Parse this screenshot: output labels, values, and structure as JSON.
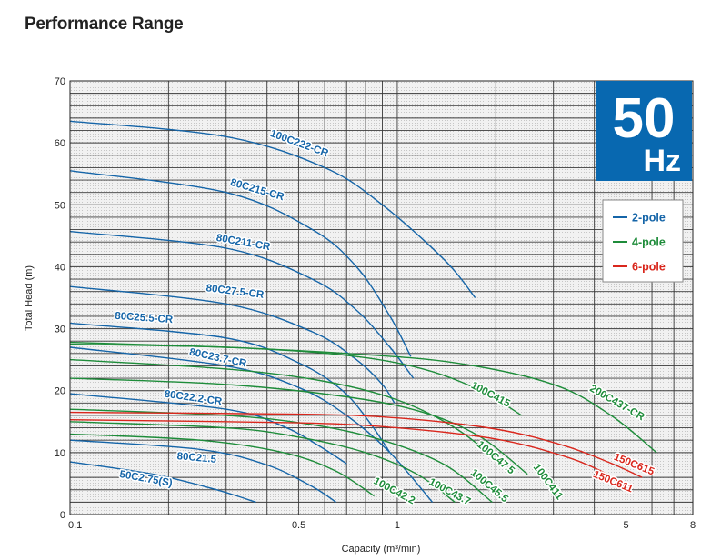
{
  "page_title": "Performance Range",
  "badge": {
    "value": "50",
    "unit": "Hz",
    "color": "#0868b0"
  },
  "legend": [
    {
      "label": "2-pole",
      "color": "#1565a8"
    },
    {
      "label": "4-pole",
      "color": "#1e8c3a"
    },
    {
      "label": "6-pole",
      "color": "#d9271d"
    }
  ],
  "chart_data": {
    "type": "line",
    "title": "Performance Range",
    "xlabel": "Capacity (m³/min)",
    "ylabel": "Total Head (m)",
    "xscale": "log",
    "xlim": [
      0.1,
      8
    ],
    "ylim": [
      0,
      70
    ],
    "x_ticks": [
      "0.1",
      "0.5",
      "1",
      "5",
      "8"
    ],
    "y_ticks": [
      "0",
      "10",
      "20",
      "30",
      "40",
      "50",
      "60",
      "70"
    ],
    "grid": true,
    "legend_position": "top-right",
    "series": [
      {
        "name": "100C222-CR",
        "pole": "2-pole",
        "x": [
          0.1,
          0.3,
          0.6,
          0.9,
          1.4,
          1.73
        ],
        "y": [
          63.5,
          61,
          56,
          50,
          41,
          35
        ]
      },
      {
        "name": "80C215-CR",
        "pole": "2-pole",
        "x": [
          0.1,
          0.3,
          0.55,
          0.75,
          0.95,
          1.1
        ],
        "y": [
          55.5,
          52,
          46,
          40,
          32,
          25.5
        ]
      },
      {
        "name": "80C211-CR",
        "pole": "2-pole",
        "x": [
          0.1,
          0.3,
          0.55,
          0.75,
          0.95,
          1.12
        ],
        "y": [
          45.7,
          43,
          38,
          33,
          27,
          22
        ]
      },
      {
        "name": "80C27.5-CR",
        "pole": "2-pole",
        "x": [
          0.1,
          0.3,
          0.55,
          0.75,
          0.9,
          0.98
        ],
        "y": [
          36.8,
          34,
          29.5,
          25,
          21,
          18
        ]
      },
      {
        "name": "80C25.5-CR",
        "pole": "2-pole",
        "x": [
          0.1,
          0.3,
          0.5,
          0.68,
          0.82,
          0.95
        ],
        "y": [
          30.9,
          28.5,
          24.5,
          20,
          15,
          10
        ]
      },
      {
        "name": "80C23.7-CR",
        "pole": "2-pole",
        "x": [
          0.1,
          0.3,
          0.5,
          0.7,
          0.95,
          1.28
        ],
        "y": [
          27,
          24,
          20.5,
          16,
          10,
          2
        ]
      },
      {
        "name": "80C22.2-CR",
        "pole": "2-pole",
        "x": [
          0.1,
          0.3,
          0.45,
          0.58,
          0.7
        ],
        "y": [
          19.5,
          17,
          14.2,
          11,
          8.2
        ]
      },
      {
        "name": "80C21.5",
        "pole": "2-pole",
        "x": [
          0.1,
          0.25,
          0.4,
          0.55,
          0.65
        ],
        "y": [
          12,
          10.5,
          8,
          4.5,
          2
        ]
      },
      {
        "name": "50C2.75(S)",
        "pole": "2-pole",
        "x": [
          0.1,
          0.18,
          0.28,
          0.37
        ],
        "y": [
          8.5,
          6.5,
          4,
          2
        ]
      },
      {
        "name": "100C415",
        "pole": "4-pole",
        "x": [
          0.1,
          0.3,
          0.7,
          1.2,
          1.8,
          2.4
        ],
        "y": [
          27.5,
          27,
          25.7,
          23.5,
          20,
          16
        ]
      },
      {
        "name": "200C437-CR",
        "pole": "4-pole",
        "x": [
          0.1,
          0.3,
          0.7,
          1.5,
          3,
          4.5,
          6.2
        ],
        "y": [
          27.8,
          27,
          26,
          24.5,
          21,
          16,
          10
        ]
      },
      {
        "name": "100C47.5",
        "pole": "4-pole",
        "x": [
          0.1,
          0.3,
          0.6,
          1,
          1.5,
          2.05
        ],
        "y": [
          25,
          23.5,
          21.5,
          18.5,
          14,
          8.5
        ]
      },
      {
        "name": "100C411",
        "pole": "4-pole",
        "x": [
          0.1,
          0.3,
          0.7,
          1.2,
          1.8,
          2.5
        ],
        "y": [
          22,
          21,
          19,
          16.5,
          12.5,
          6.5
        ]
      },
      {
        "name": "100C45.5",
        "pole": "4-pole",
        "x": [
          0.1,
          0.3,
          0.55,
          0.9,
          1.4,
          1.95
        ],
        "y": [
          17,
          16,
          14.5,
          12,
          8,
          2
        ]
      },
      {
        "name": "100C43.7",
        "pole": "4-pole",
        "x": [
          0.1,
          0.3,
          0.5,
          0.8,
          1.15,
          1.5
        ],
        "y": [
          15,
          14,
          12.5,
          10,
          6.5,
          2
        ]
      },
      {
        "name": "100C42.2",
        "pole": "4-pole",
        "x": [
          0.1,
          0.25,
          0.45,
          0.65,
          0.85
        ],
        "y": [
          13,
          12,
          10,
          7,
          3
        ]
      },
      {
        "name": "150C615",
        "pole": "6-pole",
        "x": [
          0.1,
          0.5,
          1,
          2,
          3.2,
          4.4,
          5.6
        ],
        "y": [
          16.5,
          16.2,
          15.6,
          13.8,
          11.2,
          8.5,
          6
        ]
      },
      {
        "name": "150C611",
        "pole": "6-pole",
        "x": [
          0.1,
          0.5,
          1,
          2,
          3.2,
          4.2,
          5.1
        ],
        "y": [
          15.3,
          14.8,
          14,
          12.2,
          9.5,
          7,
          4
        ]
      }
    ]
  }
}
